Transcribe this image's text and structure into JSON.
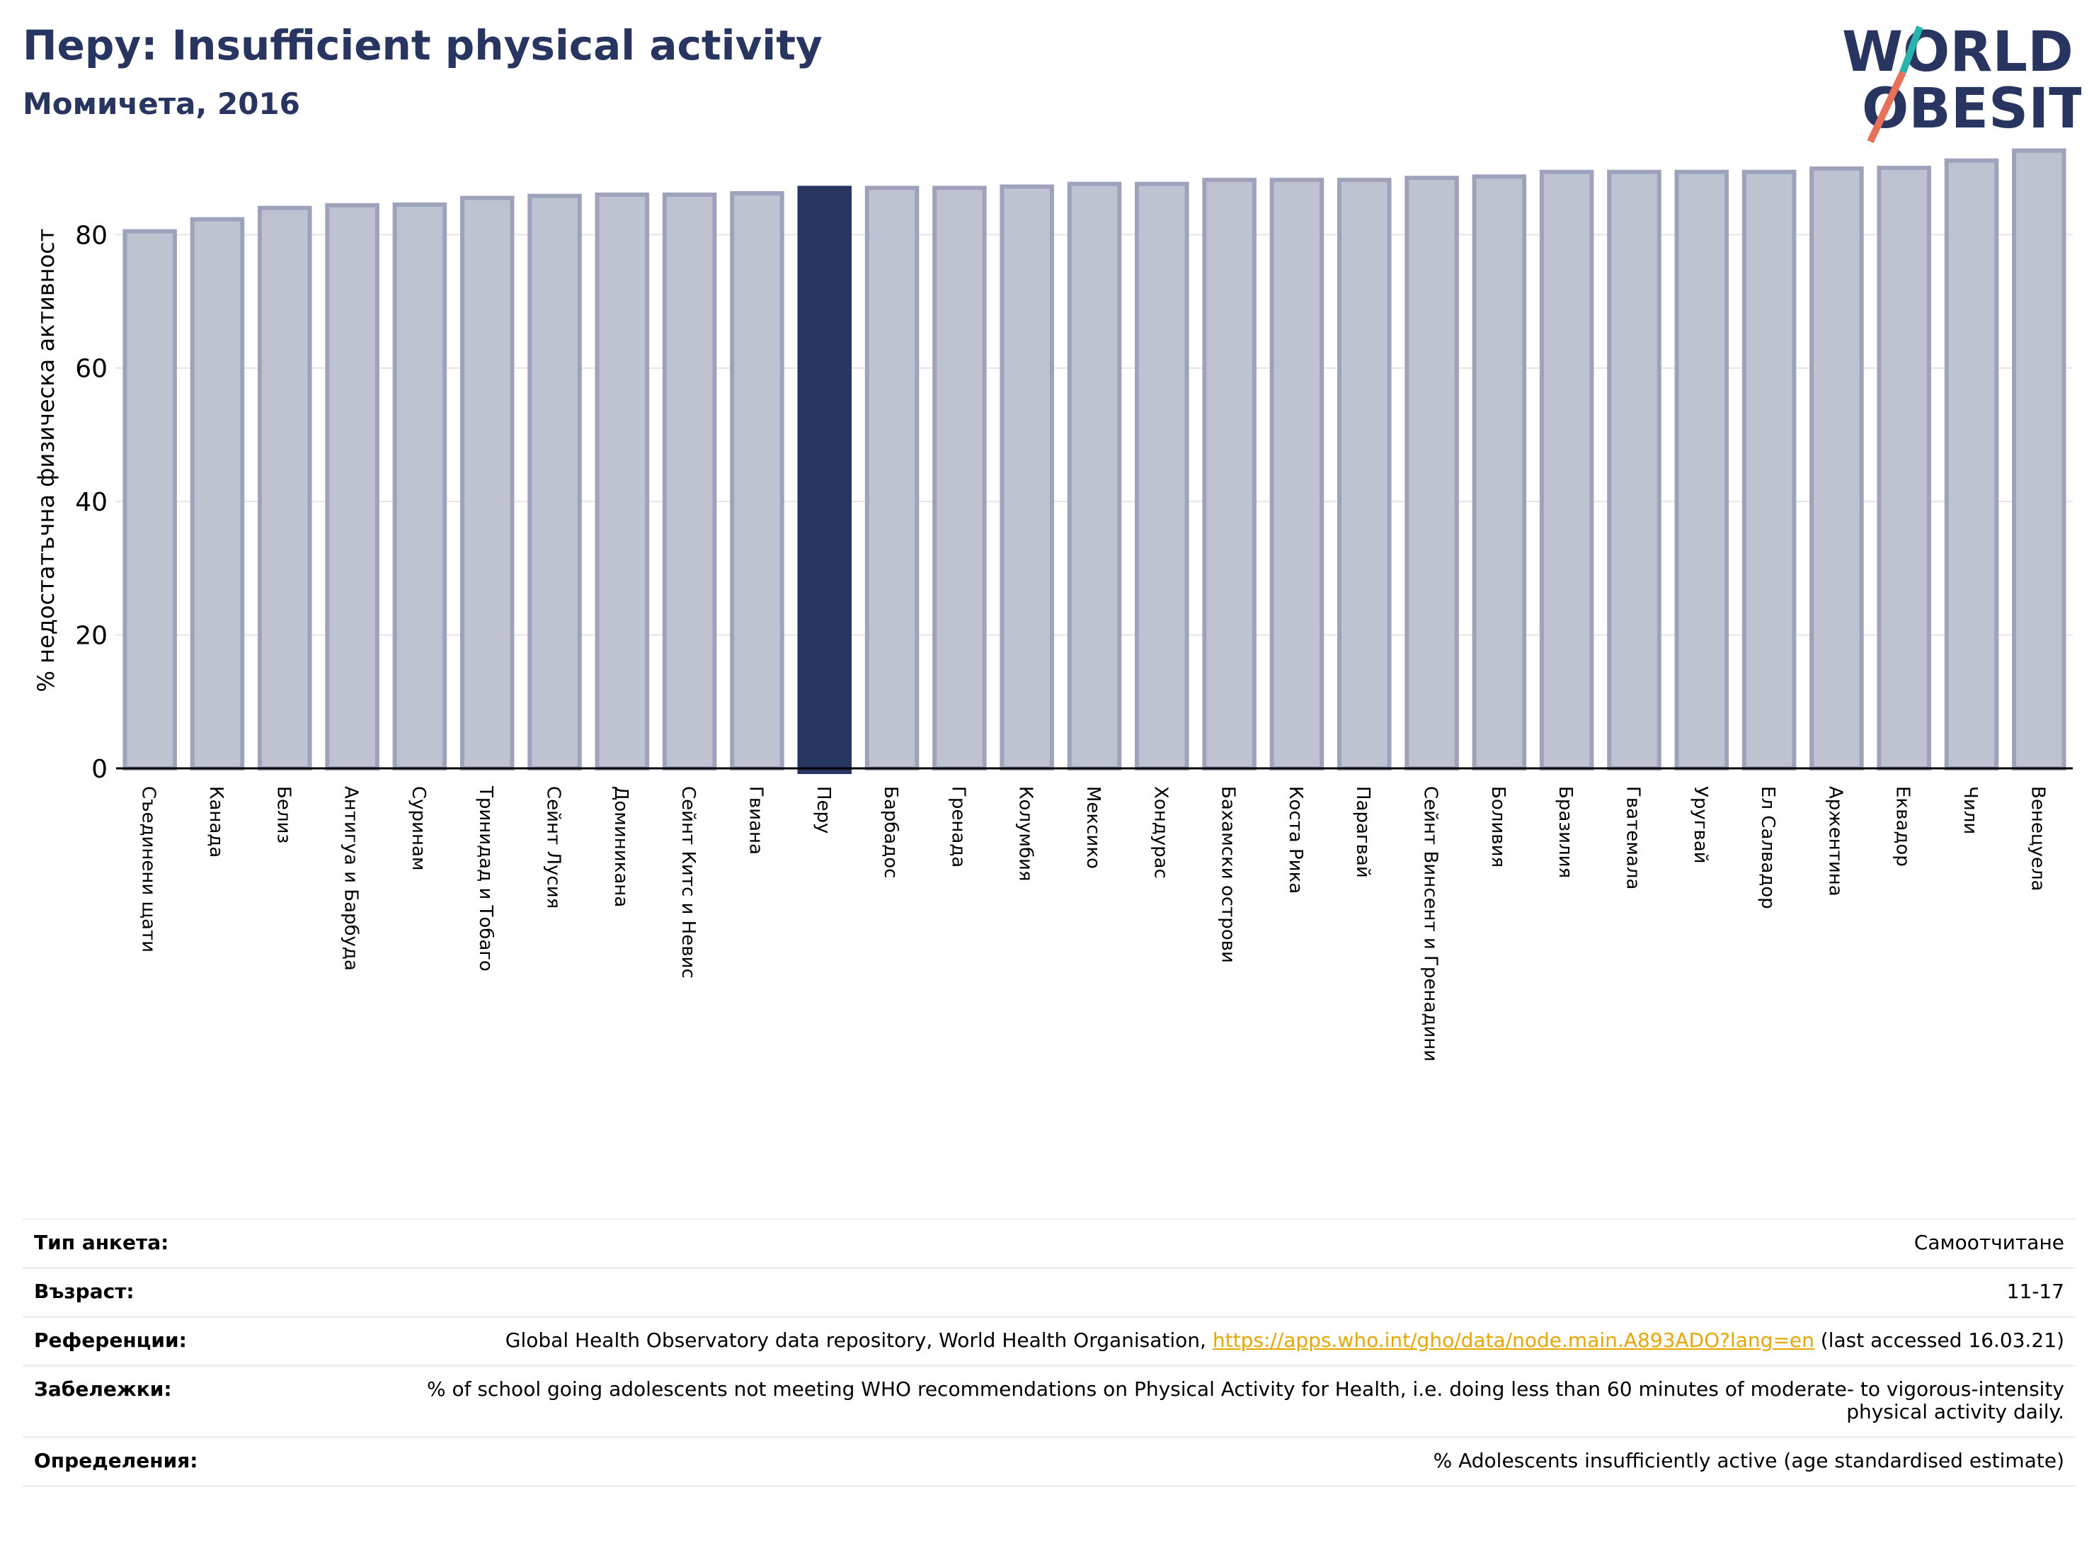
{
  "header": {
    "title": "Перу: Insufficient physical activity",
    "subtitle": "Момичета, 2016"
  },
  "logo": {
    "line1": "WORLD",
    "line2": "OBESITY"
  },
  "colors": {
    "bar": "#bfc2d0",
    "bar_edge": "#9ea3bb",
    "highlight": "#283560",
    "grid": "#e3e4ea",
    "axis": "#000000",
    "link": "#e6a700",
    "title": "#283560"
  },
  "chart_data": {
    "type": "bar",
    "title": "Перу: Insufficient physical activity",
    "subtitle": "Момичета, 2016",
    "xlabel": "",
    "ylabel": "% недостатъчна физическа активност",
    "ylim": [
      0,
      95
    ],
    "yticks": [
      0,
      20,
      40,
      60,
      80
    ],
    "grid": true,
    "highlight": "Перу",
    "categories": [
      "Съединени щати",
      "Канада",
      "Белиз",
      "Антигуа и Барбуда",
      "Суринам",
      "Тринидад и Тобаго",
      "Сейнт Лусия",
      "Доминикана",
      "Сейнт Китс и Невис",
      "Гвиана",
      "Перу",
      "Барбадос",
      "Гренада",
      "Колумбия",
      "Мексико",
      "Хондурас",
      "Бахамски острови",
      "Коста Рика",
      "Парагвай",
      "Сейнт Винсент и Гренадини",
      "Боливия",
      "Бразилия",
      "Гватемала",
      "Уругвай",
      "Ел Салвадор",
      "Аржентина",
      "Еквадор",
      "Чили",
      "Венецуела"
    ],
    "values": [
      80.5,
      82.3,
      84.0,
      84.4,
      84.5,
      85.5,
      85.8,
      86.0,
      86.0,
      86.2,
      87.0,
      87.0,
      87.0,
      87.2,
      87.6,
      87.6,
      88.2,
      88.2,
      88.2,
      88.5,
      88.7,
      89.4,
      89.4,
      89.4,
      89.4,
      89.9,
      90.0,
      91.1,
      92.6
    ]
  },
  "info": {
    "survey_label": "Тип анкета:",
    "survey_value": "Самоотчитане",
    "age_label": "Възраст:",
    "age_value": "11-17",
    "refs_label": "Референции:",
    "refs_text": "Global Health Observatory data repository, World Health Organisation,",
    "refs_link": "https://apps.who.int/gho/data/node.main.A893ADO?lang=en",
    "refs_tail": "(last accessed 16.03.21)",
    "notes_label": "Забележки:",
    "notes_value": "% of school going adolescents not meeting WHO recommendations on Physical Activity for Health, i.e. doing less than 60 minutes of moderate- to vigorous-intensity physical activity daily.",
    "defs_label": "Определения:",
    "defs_value": "% Adolescents insufficiently active (age standardised estimate)"
  }
}
